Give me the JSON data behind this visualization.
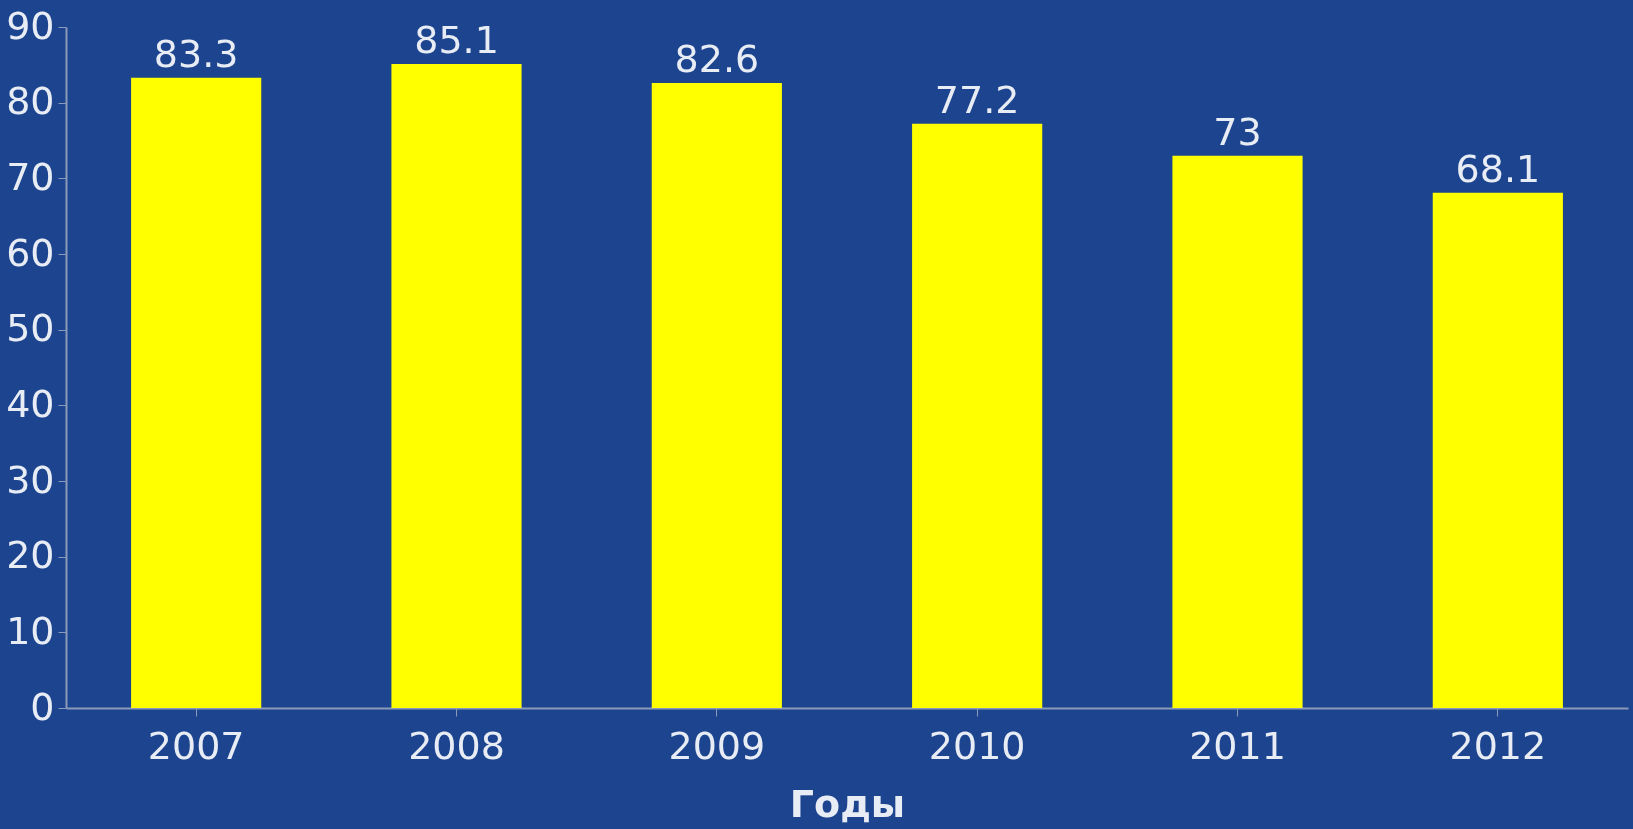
{
  "chart_data": {
    "type": "bar",
    "xlabel": "Годы",
    "categories": [
      "2007",
      "2008",
      "2009",
      "2010",
      "2011",
      "2012"
    ],
    "values": [
      83.3,
      85.1,
      82.6,
      77.2,
      73,
      68.1
    ],
    "color": "#ffff00",
    "ylim": [
      0,
      90
    ],
    "yticks": [
      0,
      10,
      20,
      30,
      40,
      50,
      60,
      70,
      80,
      90
    ],
    "data_labels": true
  }
}
